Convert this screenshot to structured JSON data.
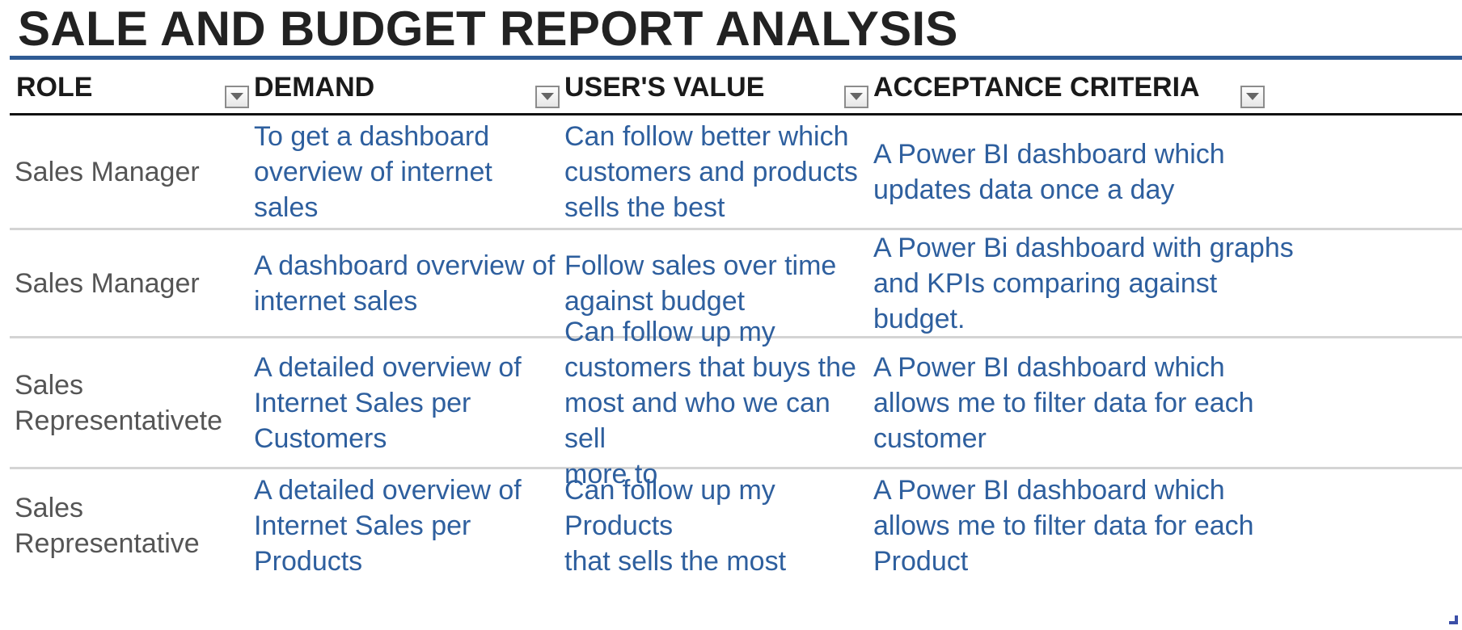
{
  "title": "SALE AND BUDGET REPORT ANALYSIS",
  "colors": {
    "title_rule": "#2f5b94",
    "header_text": "#1a1a1a",
    "role_text": "#555555",
    "value_text": "#2e5f9e",
    "row_divider": "#d4d4d4"
  },
  "columns": [
    {
      "label": "ROLE",
      "filter_icon": "dropdown-arrow-icon"
    },
    {
      "label": "DEMAND",
      "filter_icon": "dropdown-arrow-icon"
    },
    {
      "label": "USER'S VALUE",
      "filter_icon": "dropdown-arrow-icon"
    },
    {
      "label": "ACCEPTANCE CRITERIA",
      "filter_icon": "dropdown-arrow-icon"
    }
  ],
  "rows": [
    {
      "role": [
        "Sales Manager"
      ],
      "demand": [
        "To get a dashboard",
        "overview of internet sales"
      ],
      "value": [
        "Can follow better which",
        "customers and products",
        "sells the best"
      ],
      "criteria": [
        "A Power BI dashboard which",
        "updates data once a day"
      ]
    },
    {
      "role": [
        "Sales Manager"
      ],
      "demand": [
        "A dashboard overview of",
        "internet sales"
      ],
      "value": [
        "Follow sales over time",
        "against budget"
      ],
      "criteria": [
        "A Power Bi dashboard with graphs",
        "and KPIs comparing against",
        "budget."
      ]
    },
    {
      "role": [
        "Sales",
        "Representativete"
      ],
      "demand": [
        "A detailed overview of",
        "Internet Sales per",
        "Customers"
      ],
      "value": [
        "Can follow up my",
        "customers that buys the",
        "most and who we can sell",
        "more to"
      ],
      "criteria": [
        "A Power BI dashboard which",
        "allows me to filter data for each",
        "customer"
      ]
    },
    {
      "role": [
        "Sales",
        "Representative"
      ],
      "demand": [
        "A detailed overview of",
        "Internet Sales per",
        "Products"
      ],
      "value": [
        "Can follow up my Products",
        "that sells the most"
      ],
      "criteria": [
        "A Power BI dashboard which",
        "allows me to filter data for each",
        "Product"
      ]
    }
  ]
}
